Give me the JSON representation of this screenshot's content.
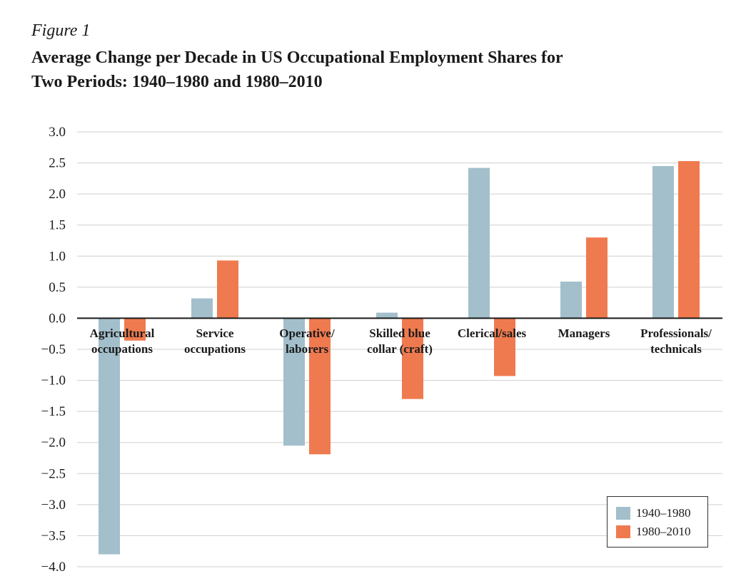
{
  "figure_label": "Figure 1",
  "chart_data": {
    "type": "bar",
    "title_lines": [
      "Average Change per Decade in US Occupational Employment Shares for",
      "Two Periods: 1940–1980 and 1980–2010"
    ],
    "ylim": [
      -4.0,
      3.0
    ],
    "yticks": [
      {
        "value": 3.0,
        "label": "3.0"
      },
      {
        "value": 2.5,
        "label": "2.5"
      },
      {
        "value": 2.0,
        "label": "2.0"
      },
      {
        "value": 1.5,
        "label": "1.5"
      },
      {
        "value": 1.0,
        "label": "1.0"
      },
      {
        "value": 0.5,
        "label": "0.5"
      },
      {
        "value": 0.0,
        "label": "0.0"
      },
      {
        "value": -0.5,
        "label": "−0.5"
      },
      {
        "value": -1.0,
        "label": "−1.0"
      },
      {
        "value": -1.5,
        "label": "−1.5"
      },
      {
        "value": -2.0,
        "label": "−2.0"
      },
      {
        "value": -2.5,
        "label": "−2.5"
      },
      {
        "value": -3.0,
        "label": "−3.0"
      },
      {
        "value": -3.5,
        "label": "−3.5"
      },
      {
        "value": -4.0,
        "label": "−4.0"
      }
    ],
    "grid": true,
    "legend_position": "bottom-right",
    "categories": [
      [
        "Agricultural",
        "occupations"
      ],
      [
        "Service",
        "occupations"
      ],
      [
        "Operative/",
        "laborers"
      ],
      [
        "Skilled blue",
        "collar (craft)"
      ],
      [
        "Clerical/sales"
      ],
      [
        "Managers"
      ],
      [
        "Professionals/",
        "technicals"
      ]
    ],
    "series": [
      {
        "name": "1940–1980",
        "color": "#a3bfcb",
        "values": [
          -3.8,
          0.32,
          -2.05,
          0.09,
          2.42,
          0.59,
          2.45
        ]
      },
      {
        "name": "1980–2010",
        "color": "#ef7a4f",
        "values": [
          -0.36,
          0.93,
          -2.19,
          -1.3,
          -0.93,
          1.3,
          2.53
        ]
      }
    ]
  }
}
